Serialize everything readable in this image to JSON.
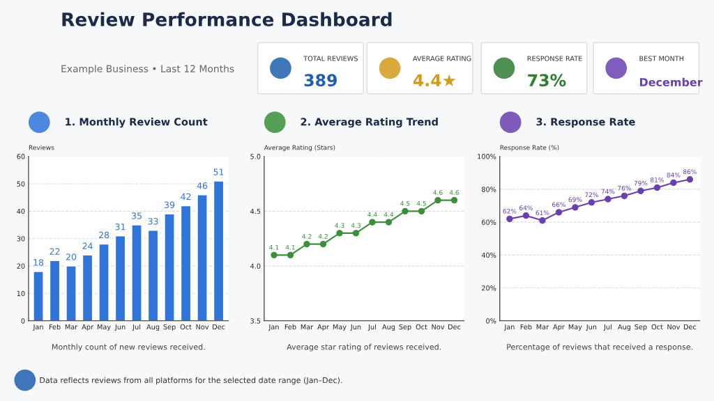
{
  "chart_data": [
    {
      "type": "other",
      "title": "Review Performance Dashboard",
      "subtitle": "Example Business • Last 12 Months",
      "annotations": [
        "TOTAL REVIEWS",
        "389",
        "AVERAGE RATING",
        "4.4★",
        "RESPONSE RATE",
        "73%",
        "BEST MONTH",
        "December",
        "Data reflects reviews from all platforms for the selected date range (Jan–Dec)."
      ],
      "colors": [
        "#1f5fae",
        "#d49a1c",
        "#2e7d32",
        "#6a3fb0"
      ]
    },
    {
      "type": "bar",
      "title": "1. Monthly Review Count",
      "ylabel": "Reviews",
      "categories": [
        "Jan",
        "Feb",
        "Mar",
        "Apr",
        "May",
        "Jun",
        "Jul",
        "Aug",
        "Sep",
        "Oct",
        "Nov",
        "Dec"
      ],
      "values": [
        18,
        22,
        20,
        24,
        28,
        31,
        35,
        33,
        39,
        42,
        46,
        51
      ],
      "color": "#2f74d8",
      "ylim": [
        0,
        60
      ],
      "yticks": [
        0,
        10,
        20,
        30,
        40,
        50,
        60
      ],
      "grid": "y",
      "data_labels": true,
      "annotations": [
        "Monthly count of new reviews received."
      ]
    },
    {
      "type": "line",
      "title": "2. Average Rating Trend",
      "ylabel": "Average Rating (Stars)",
      "categories": [
        "Jan",
        "Feb",
        "Mar",
        "Apr",
        "May",
        "Jun",
        "Jul",
        "Aug",
        "Sep",
        "Oct",
        "Nov",
        "Dec"
      ],
      "values": [
        4.1,
        4.1,
        4.2,
        4.2,
        4.3,
        4.3,
        4.4,
        4.4,
        4.5,
        4.5,
        4.6,
        4.6
      ],
      "color": "#3a8f3a",
      "ylim": [
        3.5,
        5.0
      ],
      "yticks": [
        3.5,
        {
          "value": 4,
          "label": "4.0"
        },
        4.5,
        {
          "value": 5,
          "label": "5.0"
        }
      ],
      "grid": "y",
      "marker": "circle",
      "data_labels": true,
      "annotations": [
        "Average star rating of reviews received."
      ]
    },
    {
      "type": "line",
      "title": "3. Response Rate",
      "ylabel": "Response Rate (%)",
      "categories": [
        "Jan",
        "Feb",
        "Mar",
        "Apr",
        "May",
        "Jun",
        "Jul",
        "Aug",
        "Sep",
        "Oct",
        "Nov",
        "Dec"
      ],
      "values": [
        62,
        64,
        61,
        66,
        69,
        72,
        74,
        76,
        79,
        81,
        84,
        86
      ],
      "value_labels": [
        "62%",
        "64%",
        "61%",
        "66%",
        "69%",
        "72%",
        "74%",
        "76%",
        "79%",
        "81%",
        "84%",
        "86%"
      ],
      "color": "#6a3fb0",
      "ylim": [
        0,
        100
      ],
      "yticks": [
        {
          "value": 0,
          "label": "0%"
        },
        {
          "value": 20,
          "label": "20%"
        },
        {
          "value": 40,
          "label": "40%"
        },
        {
          "value": 60,
          "label": "60%"
        },
        {
          "value": 80,
          "label": "80%"
        },
        {
          "value": 100,
          "label": "100%"
        }
      ],
      "grid": "y",
      "marker": "circle",
      "annotations": [
        "Percentage of reviews that received a response."
      ]
    }
  ]
}
